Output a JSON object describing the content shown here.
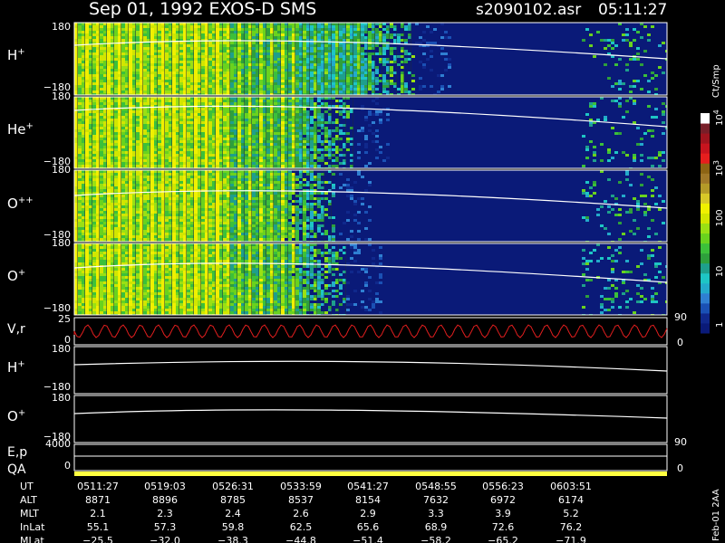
{
  "header": {
    "title": "Sep 01, 1992    EXOS-D SMS",
    "filename": "s2090102.asr",
    "time": "05:11:27"
  },
  "colorbar": {
    "unit": "Ct/Smp",
    "ticks": [
      "1",
      "10",
      "100",
      "10",
      "10"
    ],
    "tick_exponents": [
      "",
      "",
      "",
      "3",
      "4"
    ],
    "tick_values": [
      1,
      10,
      100,
      1000,
      10000
    ],
    "colors": [
      "#0a1a78",
      "#10288c",
      "#1a50b4",
      "#2f7fd2",
      "#23aacb",
      "#1ec5c5",
      "#1e9f8c",
      "#2e9f3c",
      "#3cc03a",
      "#6ad21e",
      "#9ae014",
      "#d2e600",
      "#f0f000",
      "#d8c828",
      "#b49a28",
      "#a07828",
      "#8c6414",
      "#e61e1e",
      "#c8141e",
      "#a0141e",
      "#781e28",
      "#ffffff"
    ]
  },
  "footer_label": "Feb-01  2AA",
  "chart_data": [
    {
      "type": "heatmap",
      "panel": "H+",
      "species": "H",
      "charge": "+",
      "ylim": [
        -180,
        180
      ],
      "y_ticks": [
        "180",
        "−180"
      ],
      "dense_until_x": 455
    },
    {
      "type": "heatmap",
      "panel": "He+",
      "species": "He",
      "charge": "+",
      "ylim": [
        -180,
        180
      ],
      "y_ticks": [
        "180",
        "−180"
      ],
      "dense_until_x": 390
    },
    {
      "type": "heatmap",
      "panel": "O++",
      "species": "O",
      "charge": "++",
      "ylim": [
        -180,
        180
      ],
      "y_ticks": [
        "180",
        "−180"
      ],
      "dense_until_x": 370
    },
    {
      "type": "heatmap",
      "panel": "O+",
      "species": "O",
      "charge": "+",
      "ylim": [
        -180,
        180
      ],
      "y_ticks": [
        "180",
        "−180"
      ],
      "dense_until_x": 380
    },
    {
      "type": "line",
      "panel": "V,r",
      "ylim": [
        0,
        25
      ],
      "y_ticks": [
        "25",
        "0"
      ],
      "right_ticks": [
        "90",
        "0"
      ]
    },
    {
      "type": "line",
      "panel": "H+ (lower)",
      "species": "H",
      "charge": "+",
      "ylim": [
        -180,
        180
      ],
      "y_ticks": [
        "180",
        "−180"
      ]
    },
    {
      "type": "line",
      "panel": "O+ (lower)",
      "species": "O",
      "charge": "+",
      "ylim": [
        -180,
        180
      ],
      "y_ticks": [
        "180",
        "−180"
      ]
    },
    {
      "type": "line",
      "panel": "E,p",
      "y_ticks": [
        "4000",
        "0"
      ],
      "right_ticks": [
        "90"
      ]
    },
    {
      "type": "bar",
      "panel": "QA",
      "y_ticks": [
        "0"
      ],
      "right_ticks": [
        "0"
      ]
    },
    {
      "type": "table",
      "rows": [
        {
          "label": "UT",
          "values": [
            "0511:27",
            "0519:03",
            "0526:31",
            "0533:59",
            "0541:27",
            "0548:55",
            "0556:23",
            "0603:51"
          ]
        },
        {
          "label": "ALT",
          "values": [
            "8871",
            "8896",
            "8785",
            "8537",
            "8154",
            "7632",
            "6972",
            "6174"
          ]
        },
        {
          "label": "MLT",
          "values": [
            "2.1",
            "2.3",
            "2.4",
            "2.6",
            "2.9",
            "3.3",
            "3.9",
            "5.2"
          ]
        },
        {
          "label": "InLat",
          "values": [
            "55.1",
            "57.3",
            "59.8",
            "62.5",
            "65.6",
            "68.9",
            "72.6",
            "76.2"
          ]
        },
        {
          "label": "MLat",
          "values": [
            "−25.5",
            "−32.0",
            "−38.3",
            "−44.8",
            "−51.4",
            "−58.2",
            "−65.2",
            "−71.9"
          ]
        }
      ]
    }
  ]
}
